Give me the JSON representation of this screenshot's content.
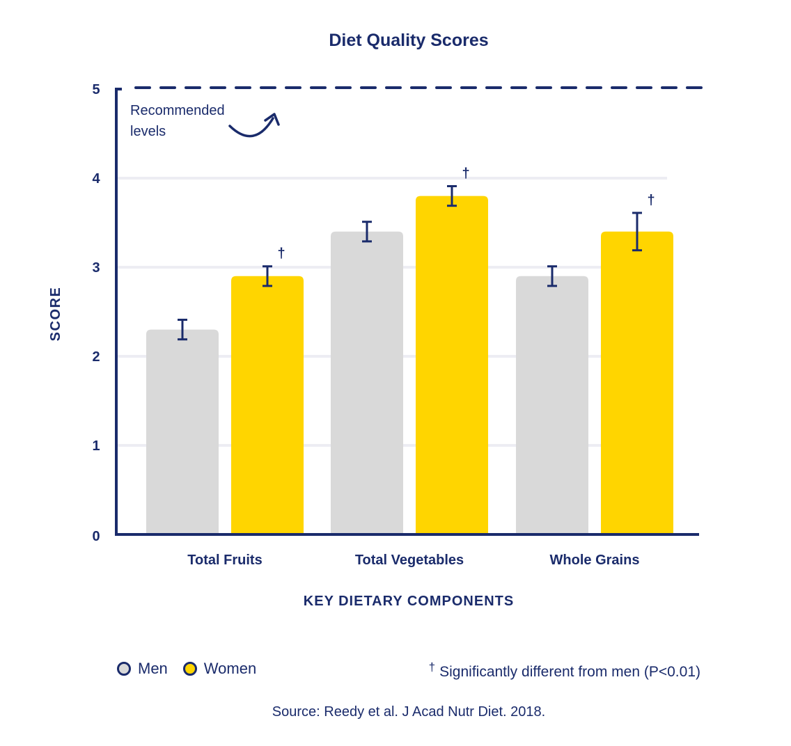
{
  "title": "Diet Quality Scores",
  "annotation": {
    "line1": "Recommended",
    "line2": "levels"
  },
  "legend": {
    "items": [
      {
        "label": "Men",
        "color": "#d9d9d9"
      },
      {
        "label": "Women",
        "color": "#ffd500"
      }
    ],
    "significance_symbol": "†",
    "significance_note": "Significantly different from men (P<0.01)"
  },
  "source": "Source: Reedy et al. J Acad Nutr Diet. 2018.",
  "colors": {
    "men": "#d9d9d9",
    "women": "#ffd500",
    "axis": "#1a2b6b",
    "grid": "#ededf3"
  },
  "chart_data": {
    "type": "bar",
    "title": "Diet Quality Scores",
    "xlabel": "KEY DIETARY COMPONENTS",
    "ylabel": "SCORE",
    "ylim": [
      0,
      5
    ],
    "yticks": [
      0,
      1,
      2,
      3,
      4,
      5
    ],
    "categories": [
      "Total Fruits",
      "Total Vegetables",
      "Whole Grains"
    ],
    "series": [
      {
        "name": "Men",
        "values": [
          2.3,
          3.4,
          2.9
        ],
        "error": [
          0.11,
          0.11,
          0.11
        ],
        "significant": [
          false,
          false,
          false
        ]
      },
      {
        "name": "Women",
        "values": [
          2.9,
          3.8,
          3.4
        ],
        "error": [
          0.11,
          0.11,
          0.21
        ],
        "significant": [
          true,
          true,
          true
        ]
      }
    ],
    "reference_line": {
      "value": 5,
      "label": "Recommended levels",
      "style": "dashed"
    },
    "grid": true,
    "legend_position": "bottom"
  }
}
